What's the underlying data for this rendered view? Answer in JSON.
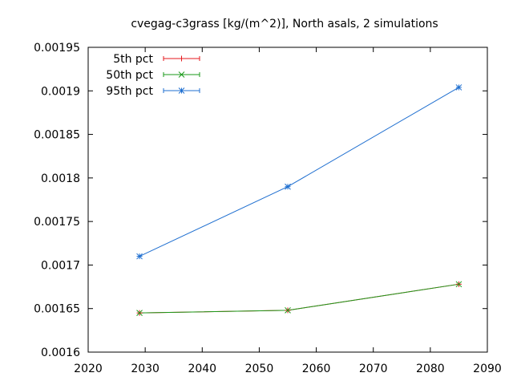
{
  "chart_data": {
    "type": "line",
    "title": "cvegag-c3grass [kg/(m^2)], North asals, 2 simulations",
    "xlabel": "",
    "ylabel": "",
    "xlim": [
      2020,
      2090
    ],
    "ylim": [
      0.0016,
      0.00195
    ],
    "x_ticks": [
      "2020",
      "2030",
      "2040",
      "2050",
      "2060",
      "2070",
      "2080",
      "2090"
    ],
    "y_ticks": [
      "0.0016",
      "0.00165",
      "0.0017",
      "0.00175",
      "0.0018",
      "0.00185",
      "0.0019",
      "0.00195"
    ],
    "grid": false,
    "legend_position": "top-left",
    "series": [
      {
        "name": "5th pct",
        "color": "#e41a1c",
        "marker": "plus",
        "x": [
          2029,
          2055,
          2085
        ],
        "y": [
          0.001645,
          0.001648,
          0.001678
        ]
      },
      {
        "name": "50th pct",
        "color": "#1a9a1a",
        "marker": "cross",
        "x": [
          2029,
          2055,
          2085
        ],
        "y": [
          0.001645,
          0.001648,
          0.001678
        ]
      },
      {
        "name": "95th pct",
        "color": "#1f6fd0",
        "marker": "star",
        "x": [
          2029,
          2055,
          2085
        ],
        "y": [
          0.00171,
          0.00179,
          0.001904
        ]
      }
    ]
  }
}
